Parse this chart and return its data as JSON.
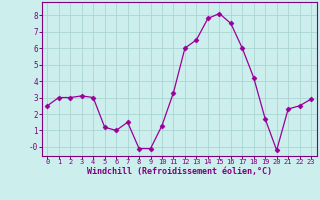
{
  "x": [
    0,
    1,
    2,
    3,
    4,
    5,
    6,
    7,
    8,
    9,
    10,
    11,
    12,
    13,
    14,
    15,
    16,
    17,
    18,
    19,
    20,
    21,
    22,
    23
  ],
  "y": [
    2.5,
    3.0,
    3.0,
    3.1,
    3.0,
    1.2,
    1.0,
    1.5,
    -0.1,
    -0.1,
    1.3,
    3.3,
    6.0,
    6.5,
    7.8,
    8.1,
    7.5,
    6.0,
    4.2,
    1.7,
    -0.2,
    2.3,
    2.5,
    2.9
  ],
  "line_color": "#990099",
  "marker": "D",
  "marker_size": 2.5,
  "bg_color": "#cceeed",
  "grid_color": "#aad4d3",
  "xlabel": "Windchill (Refroidissement éolien,°C)",
  "xlabel_color": "#800080",
  "tick_color": "#800080",
  "axis_color": "#800080",
  "xlim": [
    -0.5,
    23.5
  ],
  "ylim": [
    -0.55,
    8.8
  ],
  "yticks": [
    0,
    1,
    2,
    3,
    4,
    5,
    6,
    7,
    8
  ],
  "ytick_labels": [
    "-0",
    "1",
    "2",
    "3",
    "4",
    "5",
    "6",
    "7",
    "8"
  ],
  "xticks": [
    0,
    1,
    2,
    3,
    4,
    5,
    6,
    7,
    8,
    9,
    10,
    11,
    12,
    13,
    14,
    15,
    16,
    17,
    18,
    19,
    20,
    21,
    22,
    23
  ]
}
